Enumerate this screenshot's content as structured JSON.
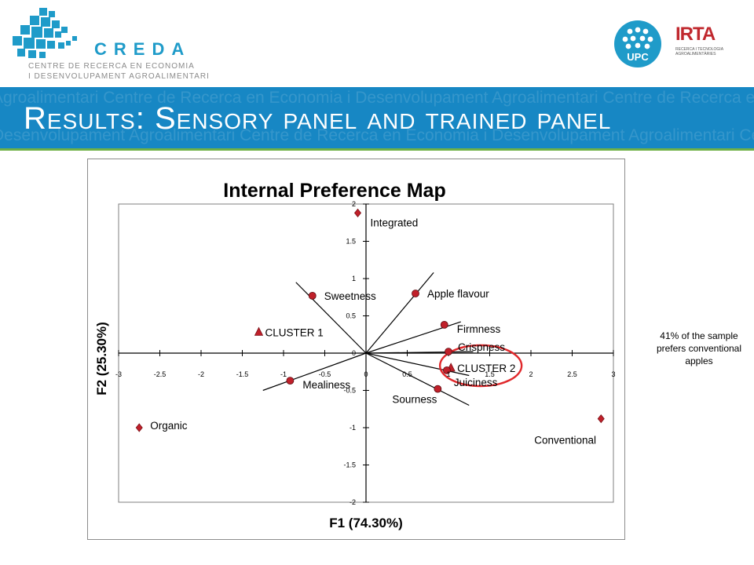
{
  "header": {
    "logo_name": "CREDA",
    "logo_subtitle_line1": "CENTRE DE RECERCA EN ECONOMIA",
    "logo_subtitle_line2": "I DESENVOLUPAMENT AGROALIMENTARI",
    "partner_logo_1": "UPC",
    "partner_logo_2": "IRTA",
    "partner_logo_2_subtitle": "RECERCA I TECNOLOGIA AGROALIMENTÀRIES"
  },
  "banner": {
    "title": "Results: Sensory panel and trained panel",
    "background_text_1": "Agroalimentari Centre de Recerca en Economia i Desenvolupament Agroalimentari Centre de Recerca en Economia i Desenvolupament",
    "background_text_2": "Desenvolupament Agroalimentari Centre de Recerca en Economia i Desenvolupament Agroalimentari Centre de Recerca en Economia",
    "colors": {
      "banner": "#1787c4",
      "accent_line": "#6fb046",
      "logo_blue": "#1f9bc9",
      "irta_red": "#c0282e"
    }
  },
  "side_note": "41% of the sample prefers conventional apples",
  "chart_data": {
    "type": "scatter",
    "title": "Internal Preference Map",
    "xlabel": "F1 (74.30%)",
    "ylabel": "F2 (25.30%)",
    "xlim": [
      -3,
      3
    ],
    "ylim": [
      -2,
      2
    ],
    "x_ticks": [
      "-3",
      "-2.5",
      "-2",
      "-1.5",
      "-1",
      "-0.5",
      "0",
      "0.5",
      "1",
      "1.5",
      "2",
      "2.5",
      "3"
    ],
    "y_ticks": [
      "2",
      "1.5",
      "1",
      "0.5",
      "0",
      "-0.5",
      "-1",
      "-1.5",
      "-2"
    ],
    "grid": false,
    "products": [
      {
        "label": "Integrated",
        "x": -0.1,
        "y": 1.88
      },
      {
        "label": "Organic",
        "x": -2.75,
        "y": -1.0
      },
      {
        "label": "Conventional",
        "x": 2.85,
        "y": -0.88
      }
    ],
    "clusters": [
      {
        "label": "CLUSTER 1",
        "x": -1.3,
        "y": 0.28
      },
      {
        "label": "CLUSTER 2",
        "x": 1.03,
        "y": -0.2
      }
    ],
    "attributes": [
      {
        "label": "Sweetness",
        "x": -0.65,
        "y": 0.77,
        "line_end": [
          -0.85,
          0.95
        ]
      },
      {
        "label": "Apple flavour",
        "x": 0.6,
        "y": 0.8,
        "line_end": [
          0.82,
          1.08
        ]
      },
      {
        "label": "Firmness",
        "x": 0.95,
        "y": 0.38,
        "line_end": [
          1.15,
          0.42
        ]
      },
      {
        "label": "Crispness",
        "x": 1.0,
        "y": 0.02,
        "line_end": [
          1.3,
          0.02
        ]
      },
      {
        "label": "Juiciness",
        "x": 0.98,
        "y": -0.23,
        "line_end": [
          1.25,
          -0.3
        ]
      },
      {
        "label": "Sourness",
        "x": 0.87,
        "y": -0.48,
        "line_end": [
          1.25,
          -0.7
        ]
      },
      {
        "label": "Mealiness",
        "x": -0.92,
        "y": -0.37,
        "line_end": [
          -1.25,
          -0.5
        ]
      }
    ],
    "highlight": {
      "label": "CLUSTER 2",
      "color": "#e0282b"
    },
    "colors": {
      "product": "#c0202a",
      "attribute": "#c0202a",
      "line": "#000000"
    }
  }
}
